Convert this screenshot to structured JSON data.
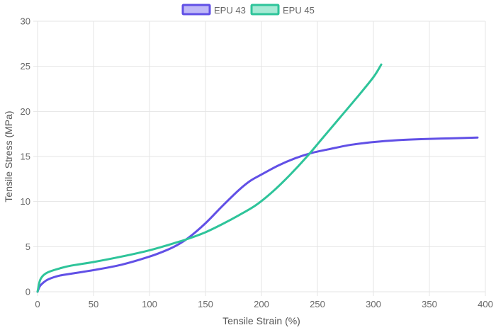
{
  "chart_data": {
    "type": "line",
    "title": "",
    "xlabel": "Tensile Strain (%)",
    "ylabel": "Tensile Stress (MPa)",
    "xlim": [
      0,
      400
    ],
    "ylim": [
      0,
      30
    ],
    "x_ticks": [
      0,
      50,
      100,
      150,
      200,
      250,
      300,
      350,
      400
    ],
    "y_ticks": [
      0,
      5,
      10,
      15,
      20,
      25,
      30
    ],
    "grid": true,
    "legend_position": "top-center",
    "series": [
      {
        "name": "EPU 43",
        "color": "#6150e6",
        "fill": "#bfb8f7",
        "x": [
          0,
          2,
          5,
          10,
          20,
          30,
          50,
          75,
          100,
          115,
          125,
          135,
          150,
          165,
          180,
          190,
          200,
          215,
          230,
          245,
          260,
          280,
          300,
          320,
          350,
          380,
          393
        ],
        "y": [
          0,
          0.6,
          1.0,
          1.4,
          1.8,
          2.0,
          2.4,
          3.0,
          3.9,
          4.6,
          5.2,
          6.0,
          7.6,
          9.5,
          11.3,
          12.3,
          13.0,
          14.0,
          14.8,
          15.4,
          15.8,
          16.3,
          16.6,
          16.8,
          16.95,
          17.05,
          17.1
        ]
      },
      {
        "name": "EPU 45",
        "color": "#2ec49a",
        "fill": "#a6ead5",
        "x": [
          0,
          2,
          5,
          10,
          20,
          30,
          50,
          75,
          100,
          125,
          135,
          150,
          165,
          180,
          195,
          210,
          225,
          240,
          255,
          270,
          285,
          300,
          307
        ],
        "y": [
          0,
          1.2,
          1.8,
          2.2,
          2.6,
          2.9,
          3.3,
          3.9,
          4.6,
          5.5,
          5.9,
          6.6,
          7.5,
          8.5,
          9.6,
          11.1,
          12.9,
          14.9,
          17.1,
          19.3,
          21.5,
          23.8,
          25.2
        ]
      }
    ]
  }
}
